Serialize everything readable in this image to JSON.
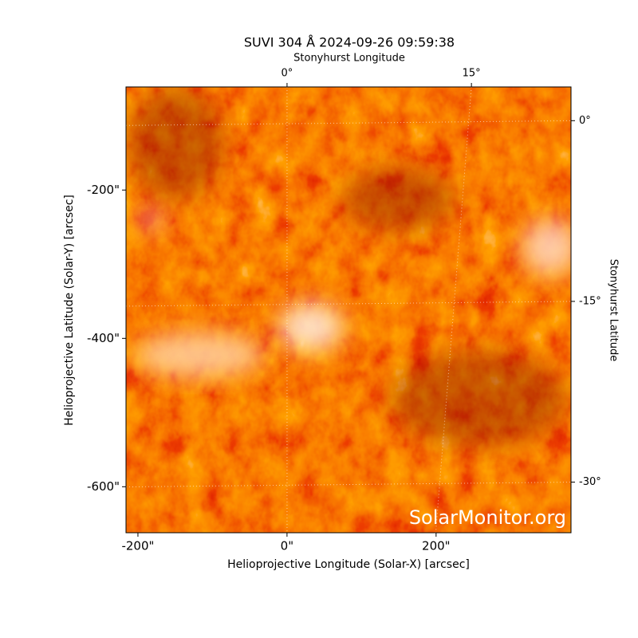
{
  "chart_data": {
    "type": "image",
    "title": "SUVI 304 Å 2024-09-26 09:59:38",
    "xlabel": "Helioprojective Longitude (Solar-X) [arcsec]",
    "ylabel": "Helioprojective Latitude (Solar-Y) [arcsec]",
    "x2label": "Stonyhurst Longitude",
    "y2label": "Stonyhurst Latitude",
    "xlim": [
      -216,
      381
    ],
    "xticks": [
      {
        "value": -200,
        "label": "-200\""
      },
      {
        "value": 0,
        "label": "0\""
      },
      {
        "value": 200,
        "label": "200\""
      }
    ],
    "ylim": [
      -662,
      -61
    ],
    "yticks": [
      {
        "value": -200,
        "label": "-200\""
      },
      {
        "value": -400,
        "label": "-400\""
      },
      {
        "value": -600,
        "label": "-600\""
      }
    ],
    "x2lim": [
      -13.1,
      23.1
    ],
    "x2ticks": [
      {
        "value": 0,
        "label": "0°"
      },
      {
        "value": 15,
        "label": "15°"
      }
    ],
    "y2lim": [
      -34.2,
      2.8
    ],
    "y2ticks": [
      {
        "value": 0,
        "label": "0°"
      },
      {
        "value": -15,
        "label": "-15°"
      },
      {
        "value": -30,
        "label": "-30°"
      }
    ],
    "grid": true,
    "watermark": "SolarMonitor.org"
  }
}
